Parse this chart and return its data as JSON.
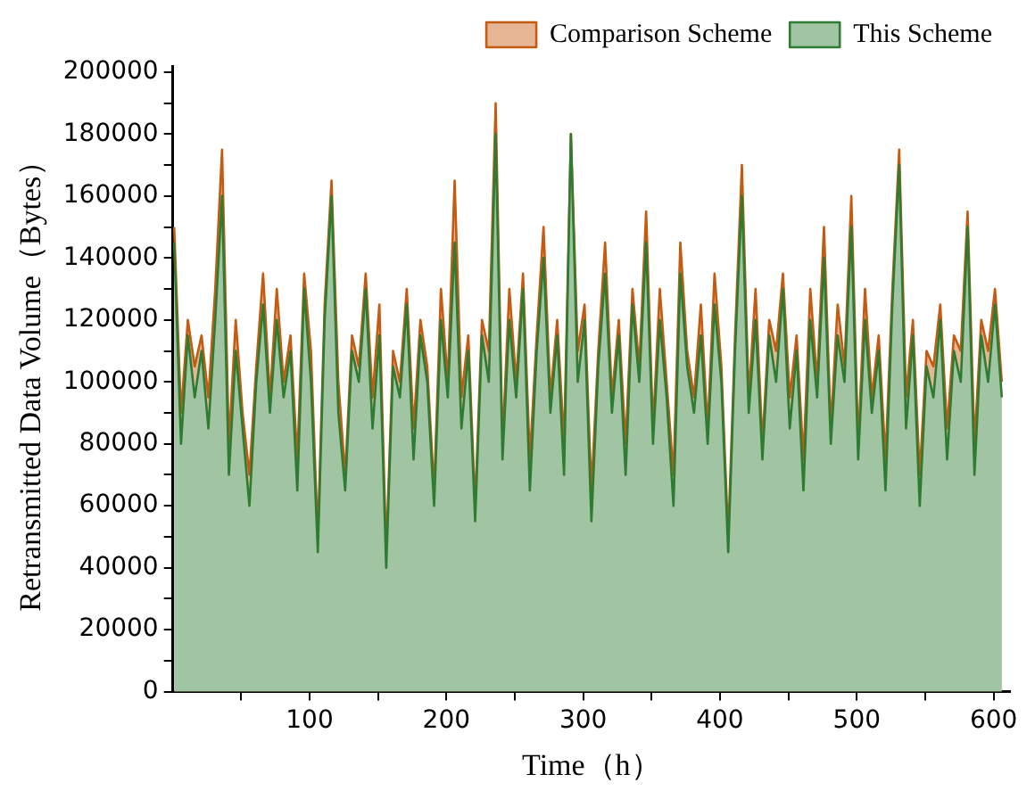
{
  "chart_data": {
    "type": "area",
    "xlabel": "Time（h）",
    "ylabel": "Retransmitted Data Volume（Bytes）",
    "x": [
      1,
      6,
      11,
      16,
      21,
      26,
      31,
      36,
      41,
      46,
      51,
      56,
      61,
      66,
      71,
      76,
      81,
      86,
      91,
      96,
      101,
      106,
      111,
      116,
      121,
      126,
      131,
      136,
      141,
      146,
      151,
      156,
      161,
      166,
      171,
      176,
      181,
      186,
      191,
      196,
      201,
      206,
      211,
      216,
      221,
      226,
      231,
      236,
      241,
      246,
      251,
      256,
      261,
      266,
      271,
      276,
      281,
      286,
      291,
      296,
      301,
      306,
      311,
      316,
      321,
      326,
      331,
      336,
      341,
      346,
      351,
      356,
      361,
      366,
      371,
      376,
      381,
      386,
      391,
      396,
      401,
      406,
      411,
      416,
      421,
      426,
      431,
      436,
      441,
      446,
      451,
      456,
      461,
      466,
      471,
      476,
      481,
      486,
      491,
      496,
      501,
      506,
      511,
      516,
      521,
      526,
      531,
      536,
      541,
      546,
      551,
      556,
      561,
      566,
      571,
      576,
      581,
      586,
      591,
      596,
      601,
      606
    ],
    "series": [
      {
        "name": "Comparison Scheme",
        "color": "#c55a11",
        "values": [
          150000,
          90000,
          120000,
          105000,
          115000,
          95000,
          130000,
          175000,
          80000,
          120000,
          90000,
          70000,
          105000,
          135000,
          95000,
          130000,
          100000,
          115000,
          75000,
          135000,
          110000,
          50000,
          125000,
          165000,
          100000,
          70000,
          115000,
          105000,
          135000,
          95000,
          125000,
          45000,
          110000,
          100000,
          130000,
          85000,
          120000,
          105000,
          65000,
          130000,
          100000,
          165000,
          95000,
          115000,
          60000,
          120000,
          110000,
          190000,
          80000,
          130000,
          100000,
          135000,
          75000,
          115000,
          150000,
          95000,
          120000,
          80000,
          180000,
          110000,
          125000,
          65000,
          110000,
          145000,
          95000,
          120000,
          80000,
          130000,
          105000,
          155000,
          85000,
          130000,
          100000,
          70000,
          145000,
          110000,
          95000,
          125000,
          85000,
          135000,
          105000,
          50000,
          115000,
          170000,
          95000,
          130000,
          80000,
          120000,
          110000,
          135000,
          95000,
          115000,
          75000,
          130000,
          100000,
          150000,
          85000,
          125000,
          105000,
          160000,
          80000,
          130000,
          95000,
          115000,
          75000,
          130000,
          175000,
          95000,
          120000,
          70000,
          110000,
          105000,
          125000,
          85000,
          115000,
          110000,
          155000,
          80000,
          120000,
          110000,
          130000,
          100000
        ]
      },
      {
        "name": "This Scheme",
        "color": "#2e7b32",
        "values": [
          145000,
          80000,
          115000,
          95000,
          110000,
          85000,
          120000,
          160000,
          70000,
          110000,
          85000,
          60000,
          100000,
          125000,
          90000,
          120000,
          95000,
          110000,
          65000,
          130000,
          100000,
          45000,
          120000,
          160000,
          90000,
          65000,
          110000,
          100000,
          130000,
          85000,
          115000,
          40000,
          105000,
          95000,
          125000,
          75000,
          115000,
          100000,
          60000,
          120000,
          95000,
          145000,
          85000,
          110000,
          55000,
          115000,
          100000,
          180000,
          75000,
          120000,
          95000,
          130000,
          65000,
          110000,
          140000,
          90000,
          115000,
          70000,
          180000,
          100000,
          120000,
          55000,
          105000,
          135000,
          90000,
          115000,
          70000,
          125000,
          100000,
          145000,
          80000,
          120000,
          95000,
          60000,
          135000,
          105000,
          90000,
          115000,
          80000,
          125000,
          100000,
          45000,
          110000,
          160000,
          90000,
          120000,
          75000,
          115000,
          100000,
          130000,
          85000,
          110000,
          65000,
          120000,
          95000,
          140000,
          80000,
          115000,
          100000,
          150000,
          75000,
          120000,
          90000,
          110000,
          65000,
          125000,
          170000,
          85000,
          115000,
          60000,
          105000,
          95000,
          120000,
          75000,
          110000,
          100000,
          150000,
          70000,
          115000,
          100000,
          125000,
          95000
        ]
      }
    ],
    "xlim": [
      0,
      612
    ],
    "xticks": [
      {
        "value": 50,
        "label": null
      },
      100,
      {
        "value": 150,
        "label": null
      },
      200,
      {
        "value": 250,
        "label": null
      },
      300,
      {
        "value": 350,
        "label": null
      },
      400,
      {
        "value": 450,
        "label": null
      },
      500,
      {
        "value": 550,
        "label": null
      },
      600
    ],
    "ylim": [
      0,
      202000
    ],
    "yticks": [
      0,
      {
        "value": 10000,
        "label": null
      },
      20000,
      {
        "value": 30000,
        "label": null
      },
      40000,
      {
        "value": 50000,
        "label": null
      },
      60000,
      {
        "value": 70000,
        "label": null
      },
      80000,
      {
        "value": 90000,
        "label": null
      },
      100000,
      {
        "value": 110000,
        "label": null
      },
      120000,
      {
        "value": 130000,
        "label": null
      },
      140000,
      {
        "value": 150000,
        "label": null
      },
      160000,
      {
        "value": 170000,
        "label": null
      },
      180000,
      {
        "value": 190000,
        "label": null
      },
      200000
    ],
    "grid": false,
    "legend": "top right"
  }
}
